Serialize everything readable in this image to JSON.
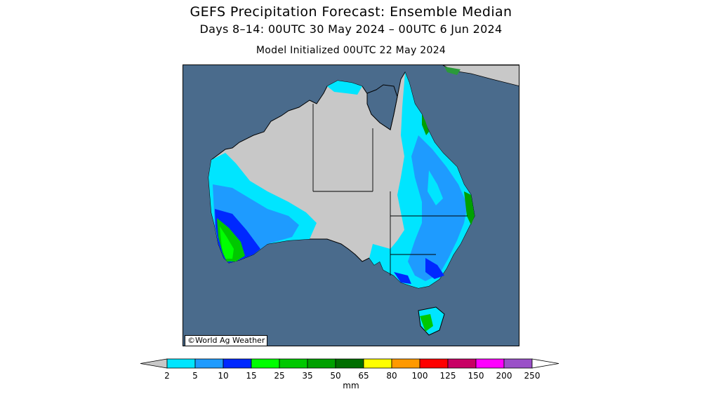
{
  "header": {
    "title": "GEFS Precipitation Forecast: Ensemble Median",
    "subtitle": "Days 8–14: 00UTC 30 May 2024 – 00UTC 6 Jun 2024",
    "initialized": "Model Initialized 00UTC 22 May 2024"
  },
  "map": {
    "region": "Australia",
    "credit": "©World Ag Weather",
    "ocean_color": "#4a6b8c",
    "land_color": "#c8c8c8"
  },
  "legend": {
    "units": "mm",
    "labels": [
      "2",
      "5",
      "10",
      "15",
      "25",
      "35",
      "50",
      "65",
      "80",
      "100",
      "125",
      "150",
      "200",
      "250"
    ],
    "below_color": "#c8c8c8",
    "colors": [
      "#00e5ff",
      "#1e9bff",
      "#0028ff",
      "#00ff00",
      "#00c800",
      "#00a000",
      "#006e00",
      "#ffff00",
      "#ff9900",
      "#ff0000",
      "#c80064",
      "#ff00ff",
      "#9a50c8"
    ],
    "above_color": "#ffffff"
  }
}
